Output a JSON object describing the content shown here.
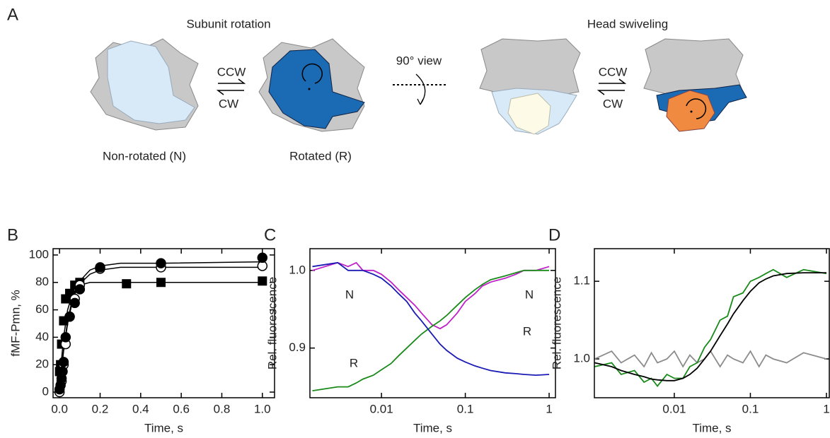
{
  "diagram": {
    "panel_label": "A",
    "left_title": "Subunit rotation",
    "right_title": "Head swiveling",
    "left_forward": "CCW",
    "left_back": "CW",
    "view_note": "90° view",
    "right_forward": "CCW",
    "right_back": "CW",
    "state_n": "Non-rotated (N)",
    "state_r": "Rotated (R)"
  },
  "chart_data": [
    {
      "type": "scatter",
      "panel_label": "B",
      "xlabel": "Time, s",
      "ylabel": "fMF-Pmn, %",
      "xlim": [
        -0.032,
        1.06
      ],
      "ylim": [
        -4.1,
        104.6
      ],
      "xticks": [
        {
          "value": 0,
          "label": "0.0"
        },
        {
          "value": 0.2,
          "label": "0.2"
        },
        {
          "value": 0.4,
          "label": "0.4"
        },
        {
          "value": 0.6,
          "label": "0.6"
        },
        {
          "value": 0.8,
          "label": "0.8"
        },
        {
          "value": 1,
          "label": "1.0"
        }
      ],
      "yticks": [
        0,
        20,
        40,
        60,
        80,
        100
      ],
      "series": [
        {
          "style": "line",
          "color": "#000000",
          "x": [
            0,
            0.01,
            0.02,
            0.04,
            0.06,
            0.08,
            0.1,
            0.15,
            0.2,
            0.3,
            0.5,
            1.0
          ],
          "values": [
            0,
            17,
            31,
            52,
            66,
            75,
            81,
            89,
            92,
            94,
            94,
            95
          ]
        },
        {
          "style": "line",
          "color": "#000000",
          "x": [
            0,
            0.01,
            0.02,
            0.04,
            0.06,
            0.08,
            0.1,
            0.15,
            0.2,
            0.3,
            0.5,
            1.0
          ],
          "values": [
            0,
            16,
            30,
            50,
            64,
            73,
            79,
            86,
            89,
            91,
            91,
            91
          ]
        },
        {
          "style": "line",
          "color": "#000000",
          "x": [
            0,
            0.01,
            0.02,
            0.04,
            0.06,
            0.08,
            0.1,
            0.15,
            0.2,
            0.3,
            0.5,
            1.0
          ],
          "values": [
            0,
            24,
            40,
            60,
            70,
            75,
            78,
            80,
            80,
            80,
            80,
            80
          ]
        },
        {
          "style": "markers",
          "marker": "filled-square",
          "color": "#000000",
          "x": [
            0,
            0.005,
            0.01,
            0.02,
            0.03,
            0.05,
            0.075,
            0.1,
            0.33,
            0.5,
            1.0
          ],
          "values": [
            15,
            20,
            35,
            52,
            68,
            72,
            78,
            80,
            79,
            80,
            81
          ]
        },
        {
          "style": "markers",
          "marker": "open-circle",
          "color": "#000000",
          "x": [
            0,
            0.01,
            0.02,
            0.03,
            0.05,
            0.075,
            0.1,
            0.2,
            0.5,
            1.0
          ],
          "values": [
            0,
            8,
            20,
            35,
            55,
            68,
            78,
            90,
            91,
            92
          ]
        },
        {
          "style": "markers",
          "marker": "filled-circle",
          "color": "#000000",
          "x": [
            0,
            0.005,
            0.01,
            0.015,
            0.02,
            0.03,
            0.05,
            0.075,
            0.1,
            0.2,
            0.5,
            1.0
          ],
          "values": [
            2,
            5,
            10,
            15,
            22,
            40,
            55,
            65,
            75,
            91,
            94,
            98
          ]
        }
      ]
    },
    {
      "type": "line",
      "panel_label": "C",
      "xlabel": "Time, s",
      "ylabel": "Rel. fluorescence",
      "xscale": "log",
      "xlim": [
        0.0014,
        1.19
      ],
      "ylim": [
        0.836,
        1.028
      ],
      "xticks": [
        0.01,
        0.1,
        1
      ],
      "yticks": [
        0.9,
        {
          "value": 1,
          "label": "1.0"
        }
      ],
      "annotations": [
        "N",
        "R",
        "N",
        "R"
      ],
      "x": [
        0.0015,
        0.003,
        0.004,
        0.005,
        0.006,
        0.008,
        0.01,
        0.013,
        0.016,
        0.02,
        0.025,
        0.03,
        0.04,
        0.05,
        0.06,
        0.08,
        0.1,
        0.13,
        0.16,
        0.2,
        0.3,
        0.4,
        0.5,
        0.7,
        1.0
      ],
      "series": [
        {
          "color": "#c020c8",
          "values": [
            1.0,
            1.01,
            1.005,
            1.01,
            1.0,
            1.0,
            0.995,
            0.985,
            0.975,
            0.965,
            0.955,
            0.945,
            0.93,
            0.925,
            0.93,
            0.945,
            0.96,
            0.97,
            0.98,
            0.985,
            0.99,
            0.995,
            1.0,
            1.0,
            1.005
          ]
        },
        {
          "color": "#1a8a1a",
          "values": [
            0.845,
            0.85,
            0.85,
            0.855,
            0.86,
            0.865,
            0.872,
            0.88,
            0.89,
            0.9,
            0.91,
            0.918,
            0.928,
            0.935,
            0.942,
            0.955,
            0.965,
            0.975,
            0.982,
            0.988,
            0.993,
            0.997,
            1.0,
            1.0,
            1.0
          ]
        },
        {
          "color": "#1a1ab4",
          "values": [
            1.005,
            1.01,
            1.0,
            1.0,
            1.0,
            0.995,
            0.99,
            0.98,
            0.97,
            0.96,
            0.945,
            0.935,
            0.918,
            0.905,
            0.897,
            0.887,
            0.882,
            0.877,
            0.874,
            0.871,
            0.868,
            0.867,
            0.866,
            0.865,
            0.866
          ]
        }
      ]
    },
    {
      "type": "line",
      "panel_label": "D",
      "xlabel": "Time, s",
      "ylabel": "Rel. fluorescence",
      "xscale": "log",
      "xlim": [
        0.00089,
        1.09
      ],
      "ylim": [
        0.95,
        1.142
      ],
      "xticks": [
        0.01,
        0.1,
        1
      ],
      "yticks": [
        {
          "value": 1,
          "label": "1.0"
        },
        1.1
      ],
      "x": [
        0.0009,
        0.0015,
        0.002,
        0.003,
        0.004,
        0.005,
        0.006,
        0.008,
        0.01,
        0.013,
        0.016,
        0.02,
        0.025,
        0.03,
        0.04,
        0.05,
        0.06,
        0.08,
        0.1,
        0.13,
        0.16,
        0.2,
        0.3,
        0.5,
        1.0
      ],
      "series": [
        {
          "color": "#8c8c8c",
          "values": [
            1.0,
            1.01,
            0.995,
            1.005,
            0.99,
            1.008,
            0.995,
            1.0,
            1.01,
            0.99,
            1.005,
            0.995,
            1.0,
            1.01,
            0.99,
            1.005,
            1.0,
            0.995,
            1.01,
            0.99,
            1.005,
            1.0,
            0.995,
            1.008,
            1.0
          ]
        },
        {
          "color": "#1a8a1a",
          "values": [
            0.99,
            0.995,
            0.98,
            0.985,
            0.97,
            0.975,
            0.965,
            0.98,
            0.975,
            0.975,
            0.99,
            0.995,
            1.015,
            1.025,
            1.05,
            1.055,
            1.08,
            1.085,
            1.1,
            1.105,
            1.11,
            1.115,
            1.105,
            1.115,
            1.11
          ]
        },
        {
          "color": "#000000",
          "values": [
            0.995,
            0.99,
            0.985,
            0.98,
            0.977,
            0.974,
            0.973,
            0.972,
            0.972,
            0.975,
            0.98,
            0.988,
            1.0,
            1.01,
            1.03,
            1.045,
            1.058,
            1.075,
            1.087,
            1.098,
            1.103,
            1.107,
            1.11,
            1.111,
            1.111
          ]
        }
      ]
    }
  ]
}
